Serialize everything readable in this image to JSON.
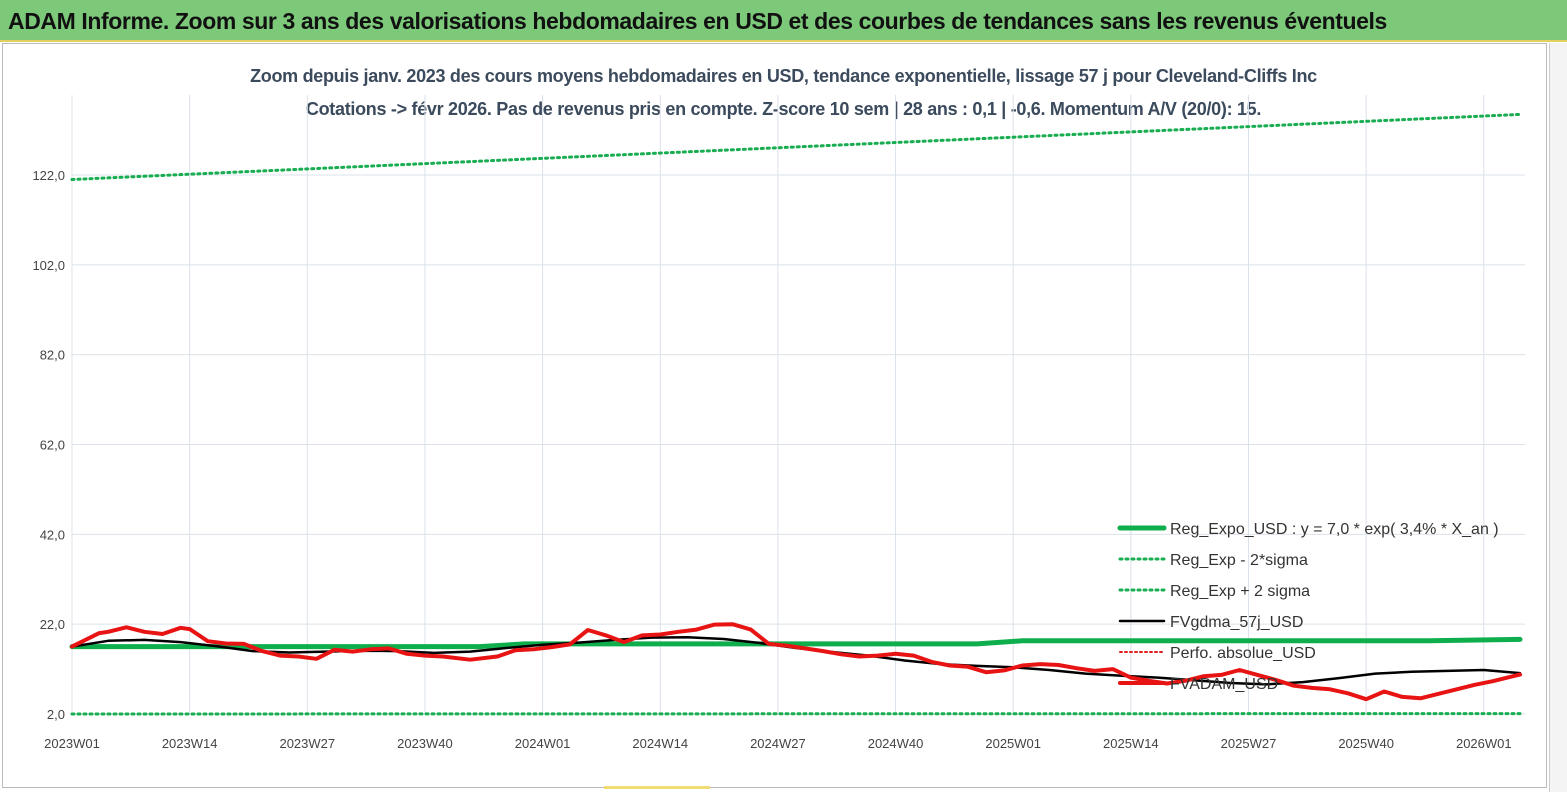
{
  "banner": {
    "title": "ADAM Informe. Zoom sur 3 ans des valorisations hebdomadaires en USD et des courbes de tendances sans les revenus éventuels"
  },
  "chart_data": {
    "type": "line",
    "title": "Zoom depuis janv. 2023 des cours moyens hebdomadaires en USD, tendance exponentielle, lissage 57 j pour Cleveland-Cliffs Inc",
    "subtitle": "Cotations -> févr 2026.  Pas de revenus pris en compte. Z-score 10 sem | 28 ans : 0,1 | -0,6. Momentum A/V (20/0): 15.",
    "xlabel": "",
    "ylabel": "",
    "ylim": [
      2,
      142
    ],
    "yticks": [
      "122,0",
      "102,0",
      "82,0",
      "62,0",
      "42,0",
      "22,0",
      "2,0"
    ],
    "ytick_values": [
      122,
      102,
      82,
      62,
      42,
      22,
      2
    ],
    "xticks": [
      "2023W01",
      "2023W14",
      "2023W27",
      "2023W40",
      "2024W01",
      "2024W14",
      "2024W27",
      "2024W40",
      "2025W01",
      "2025W14",
      "2025W27",
      "2025W40",
      "2026W01"
    ],
    "x_count": 161,
    "grid": true,
    "legend_position": "right",
    "colors": {
      "reg_expo": "#0fae4d",
      "reg_band": "#18ad50",
      "fvgdma": "#000000",
      "perfo": "#e02020",
      "fvadam": "#e81414",
      "grid": "#dbe2ea"
    },
    "series": [
      {
        "name": "Reg_Expo_USD : y = 7,0 * exp( 3,4% *  X_an )",
        "style": "thick",
        "x": [
          0,
          45,
          50,
          100,
          105,
          150,
          160
        ],
        "values": [
          17.0,
          17.0,
          17.6,
          17.6,
          18.3,
          18.3,
          18.6
        ]
      },
      {
        "name": "Reg_Exp - 2*sigma",
        "style": "dotted",
        "x": [
          0,
          160
        ],
        "values": [
          2.0,
          2.1
        ]
      },
      {
        "name": "Reg_Exp + 2 sigma",
        "style": "dotted",
        "x": [
          0,
          160
        ],
        "values": [
          121.0,
          135.5
        ]
      },
      {
        "name": "FVgdma_57j_USD",
        "style": "solid",
        "x": [
          0,
          4,
          8,
          12,
          16,
          20,
          24,
          28,
          32,
          36,
          40,
          44,
          48,
          52,
          56,
          60,
          64,
          68,
          72,
          76,
          80,
          84,
          88,
          92,
          96,
          100,
          104,
          108,
          112,
          116,
          120,
          124,
          128,
          132,
          136,
          140,
          144,
          148,
          152,
          156,
          160
        ],
        "values": [
          17.0,
          18.3,
          18.5,
          18.0,
          17.1,
          16.0,
          15.7,
          15.9,
          16.1,
          16.0,
          15.6,
          15.9,
          16.7,
          17.4,
          17.9,
          18.5,
          19.0,
          19.1,
          18.7,
          17.8,
          16.7,
          15.8,
          15.0,
          13.9,
          13.1,
          12.7,
          12.4,
          11.8,
          11.0,
          10.5,
          10.1,
          9.5,
          8.9,
          8.6,
          9.1,
          10.0,
          11.0,
          11.4,
          11.6,
          11.8,
          11.1
        ]
      },
      {
        "name": "Perfo. absolue_USD",
        "style": "dotted",
        "x": [],
        "values": []
      },
      {
        "name": "FVADAM_USD",
        "style": "thick",
        "x": [
          0,
          3,
          4,
          6,
          8,
          10,
          12,
          13,
          15,
          17,
          19,
          21,
          23,
          25,
          27,
          29,
          31,
          33,
          35,
          37,
          39,
          41,
          44,
          47,
          49,
          51,
          53,
          55,
          57,
          59,
          61,
          63,
          65,
          67,
          69,
          71,
          73,
          75,
          77,
          79,
          81,
          83,
          85,
          87,
          89,
          91,
          93,
          95,
          97,
          99,
          101,
          103,
          105,
          107,
          109,
          111,
          113,
          115,
          117,
          119,
          121,
          123,
          125,
          127,
          129,
          131,
          133,
          135,
          137,
          139,
          141,
          143,
          145,
          147,
          149,
          151,
          153,
          155,
          157,
          159,
          160
        ],
        "values": [
          17.0,
          20.0,
          20.3,
          21.3,
          20.3,
          19.8,
          21.2,
          20.9,
          18.2,
          17.7,
          17.6,
          16.0,
          15.0,
          14.8,
          14.3,
          16.3,
          15.9,
          16.4,
          16.6,
          15.4,
          15.0,
          14.8,
          14.1,
          14.8,
          16.2,
          16.4,
          16.9,
          17.5,
          20.7,
          19.5,
          18.0,
          19.5,
          19.7,
          20.3,
          20.8,
          21.9,
          22.0,
          20.8,
          17.6,
          17.2,
          16.6,
          16.0,
          15.3,
          14.8,
          15.0,
          15.4,
          15.0,
          13.6,
          12.8,
          12.5,
          11.3,
          11.7,
          12.8,
          13.1,
          12.9,
          12.2,
          11.6,
          12.0,
          10.1,
          9.4,
          8.8,
          9.4,
          10.4,
          10.7,
          11.8,
          10.7,
          9.6,
          8.3,
          7.8,
          7.5,
          6.6,
          5.3,
          7.0,
          5.8,
          5.5,
          6.5,
          7.5,
          8.5,
          9.3,
          10.3,
          10.8
        ]
      }
    ]
  }
}
